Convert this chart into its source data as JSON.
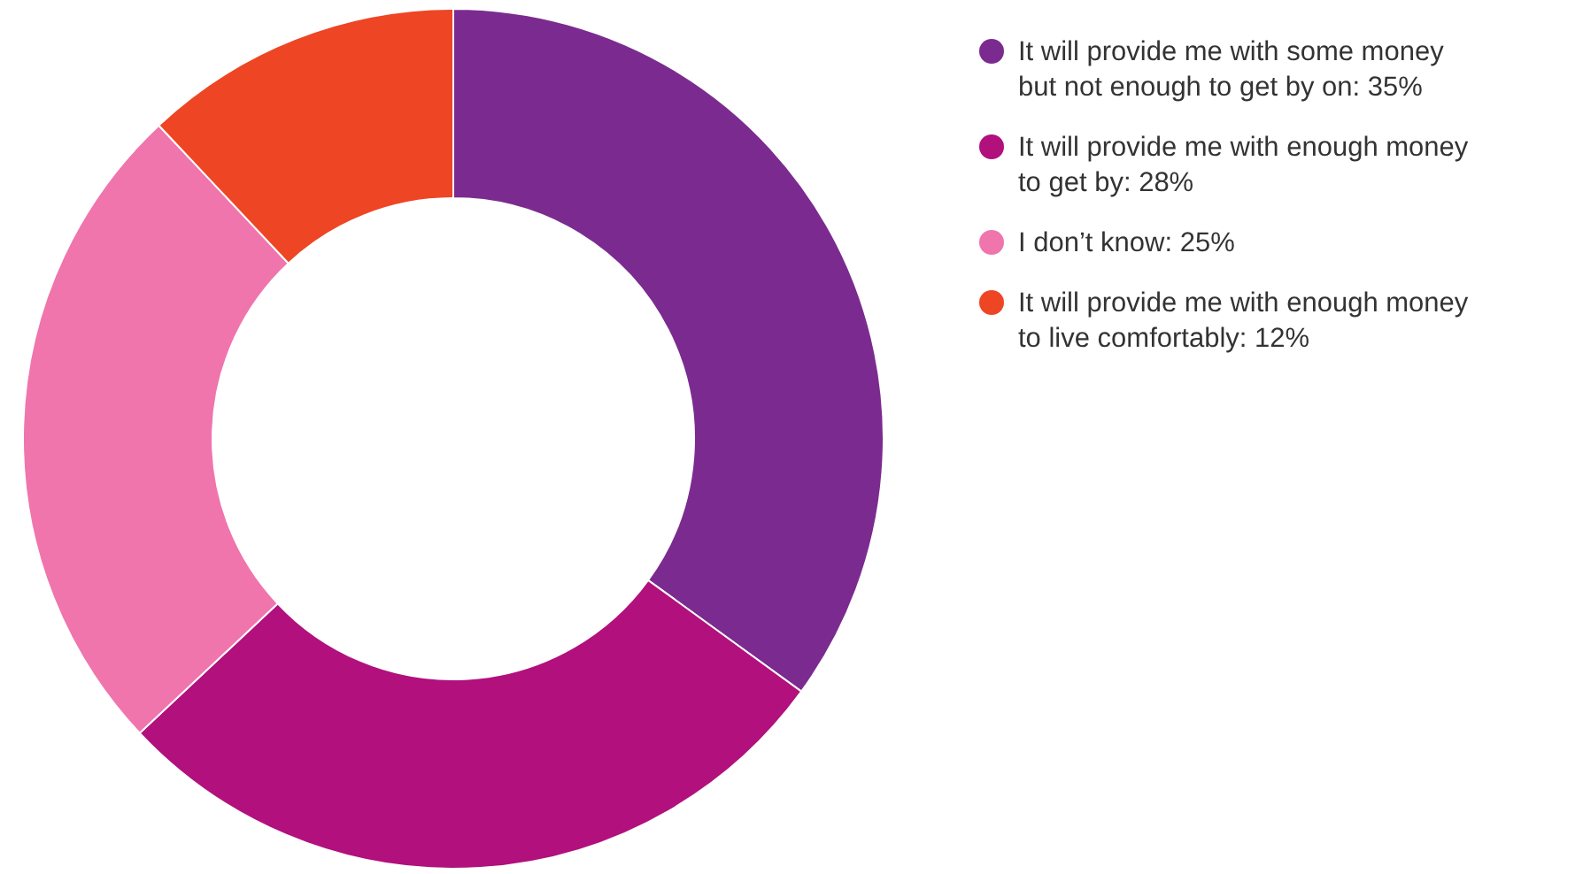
{
  "chart_data": {
    "type": "donut",
    "categories": [
      "It will provide me with some money but not enough to get by on: 35%",
      "It will provide me with enough money to get by: 28%",
      "I don’t know: 25%",
      "It will provide me with enough money to live comfortably: 12%"
    ],
    "values": [
      35,
      28,
      25,
      12
    ],
    "colors": [
      "#7b2b8f",
      "#b1107d",
      "#f075ac",
      "#ee4524"
    ],
    "legend": "right"
  }
}
